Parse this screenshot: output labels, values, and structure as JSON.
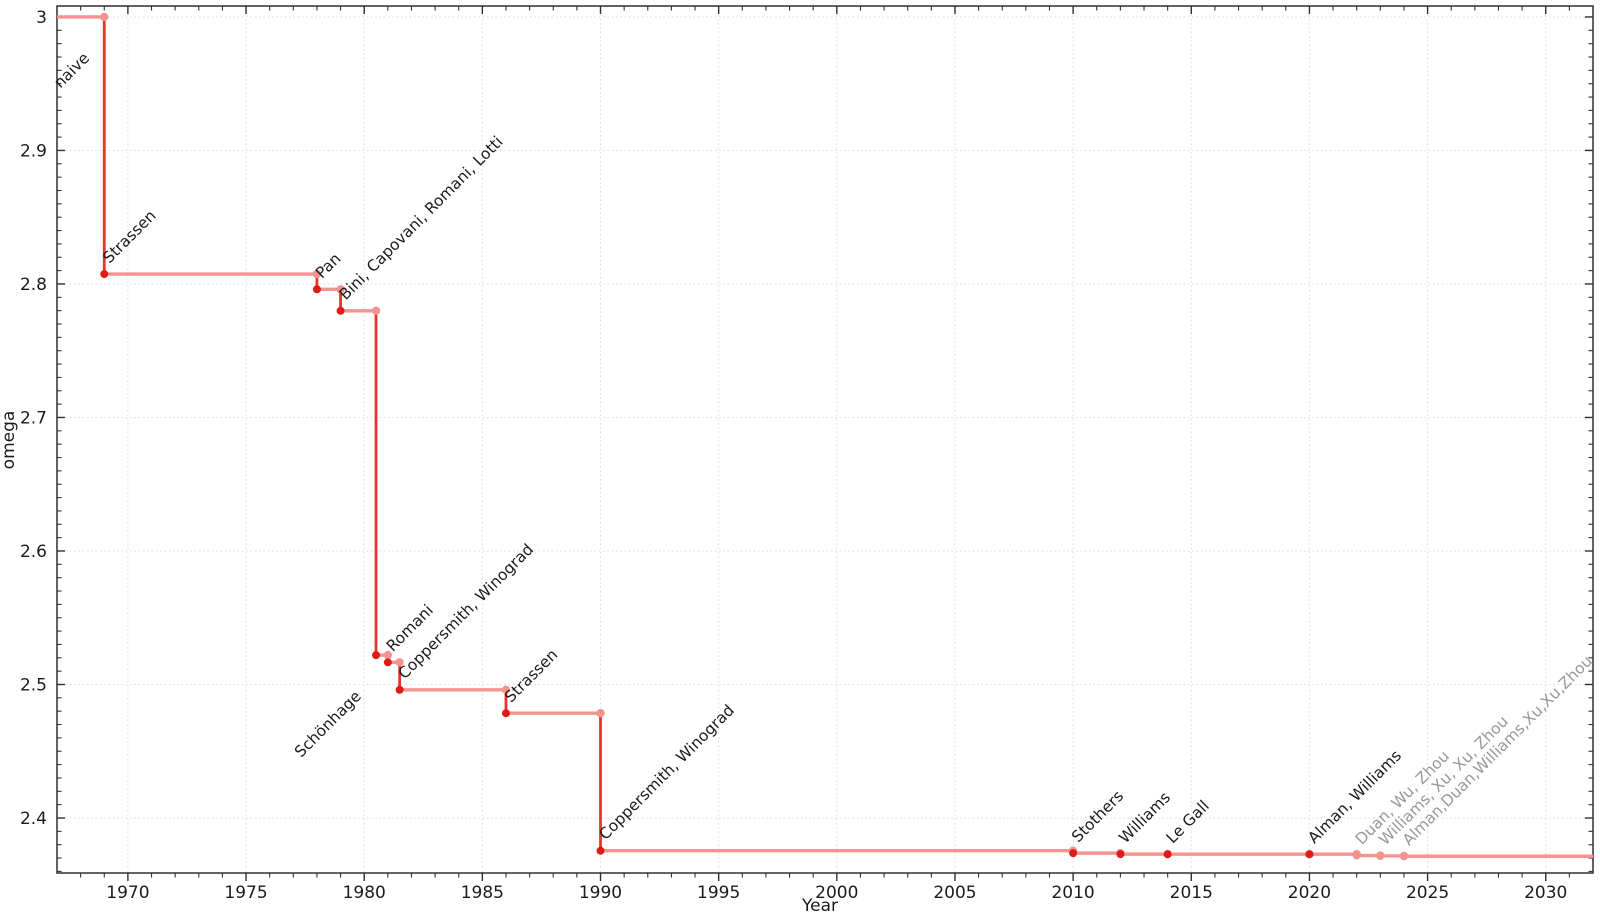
{
  "page": {
    "background": "#ffffff"
  },
  "chart_data": {
    "type": "line",
    "subtype": "step",
    "title": "",
    "xlabel": "Year",
    "ylabel": "omega",
    "legend": "none",
    "grid": "major-dotted",
    "xlim": [
      1967,
      2032
    ],
    "ylim": [
      2.3588,
      3.0082
    ],
    "x_major_ticks": [
      1970,
      1975,
      1980,
      1985,
      1990,
      1995,
      2000,
      2005,
      2010,
      2015,
      2020,
      2025,
      2030
    ],
    "x_minor_step": 1,
    "y_major_ticks": [
      {
        "value": 3.0,
        "label": "3"
      },
      {
        "value": 2.9,
        "label": "2.9"
      },
      {
        "value": 2.8,
        "label": "2.8"
      },
      {
        "value": 2.7,
        "label": "2.7"
      },
      {
        "value": 2.6,
        "label": "2.6"
      },
      {
        "value": 2.5,
        "label": "2.5"
      },
      {
        "value": 2.4,
        "label": "2.4"
      }
    ],
    "y_minor_step": 0.01,
    "start": {
      "label": "naive",
      "omega": 3.0,
      "from_year": 1967,
      "label_side": "below",
      "label_color": "black"
    },
    "end_year": 2032,
    "points": [
      {
        "year": 1969,
        "omega": 2.8074,
        "label": "Strassen",
        "label_color": "black",
        "label_side": "above",
        "point_style": "strong"
      },
      {
        "year": 1978,
        "omega": 2.796,
        "label": "Pan",
        "label_color": "black",
        "label_side": "above",
        "point_style": "strong"
      },
      {
        "year": 1979,
        "omega": 2.7799,
        "label": "Bini, Capovani, Romani, Lotti",
        "label_color": "black",
        "label_side": "above",
        "point_style": "strong"
      },
      {
        "year": 1980.5,
        "omega": 2.522,
        "label": "Schönhage",
        "label_color": "black",
        "label_side": "below",
        "point_style": "strong"
      },
      {
        "year": 1981,
        "omega": 2.5166,
        "label": "Romani",
        "label_color": "black",
        "label_side": "above",
        "point_style": "strong"
      },
      {
        "year": 1981.5,
        "omega": 2.496,
        "label": "Coppersmith, Winograd",
        "label_color": "black",
        "label_side": "above",
        "point_style": "strong"
      },
      {
        "year": 1986,
        "omega": 2.4785,
        "label": "Strassen",
        "label_color": "black",
        "label_side": "above",
        "point_style": "strong"
      },
      {
        "year": 1990,
        "omega": 2.3755,
        "label": "Coppersmith, Winograd",
        "label_color": "black",
        "label_side": "above",
        "point_style": "strong"
      },
      {
        "year": 2010,
        "omega": 2.37369,
        "label": "Stothers",
        "label_color": "black",
        "label_side": "above",
        "point_style": "strong"
      },
      {
        "year": 2012,
        "omega": 2.37293,
        "label": "Williams",
        "label_color": "black",
        "label_side": "above",
        "point_style": "strong"
      },
      {
        "year": 2014,
        "omega": 2.37287,
        "label": "Le Gall",
        "label_color": "black",
        "label_side": "above",
        "point_style": "strong"
      },
      {
        "year": 2020,
        "omega": 2.37286,
        "label": "Alman, Williams",
        "label_color": "black",
        "label_side": "above",
        "point_style": "strong"
      },
      {
        "year": 2022,
        "omega": 2.37188,
        "label": "Duan, Wu, Zhou",
        "label_color": "gray",
        "label_side": "above",
        "point_style": "light"
      },
      {
        "year": 2023,
        "omega": 2.37155,
        "label": "Williams, Xu, Xu, Zhou",
        "label_color": "gray",
        "label_side": "above",
        "point_style": "light"
      },
      {
        "year": 2024,
        "omega": 2.37134,
        "label": "Alman,Duan,Williams,Xu,Xu,Zhou",
        "label_color": "gray",
        "label_side": "above",
        "point_style": "light"
      }
    ],
    "colors": {
      "step_light": "#F4938F",
      "step_strong": "#E9332D",
      "point_strong": "#DE1B15",
      "point_light": "#F4938F",
      "label_black": "#1B1B1B",
      "label_gray": "#98989B",
      "grid": "#DBDBDB",
      "axis": "#2F2F2F",
      "tick_label": "#1B1B1B"
    }
  }
}
